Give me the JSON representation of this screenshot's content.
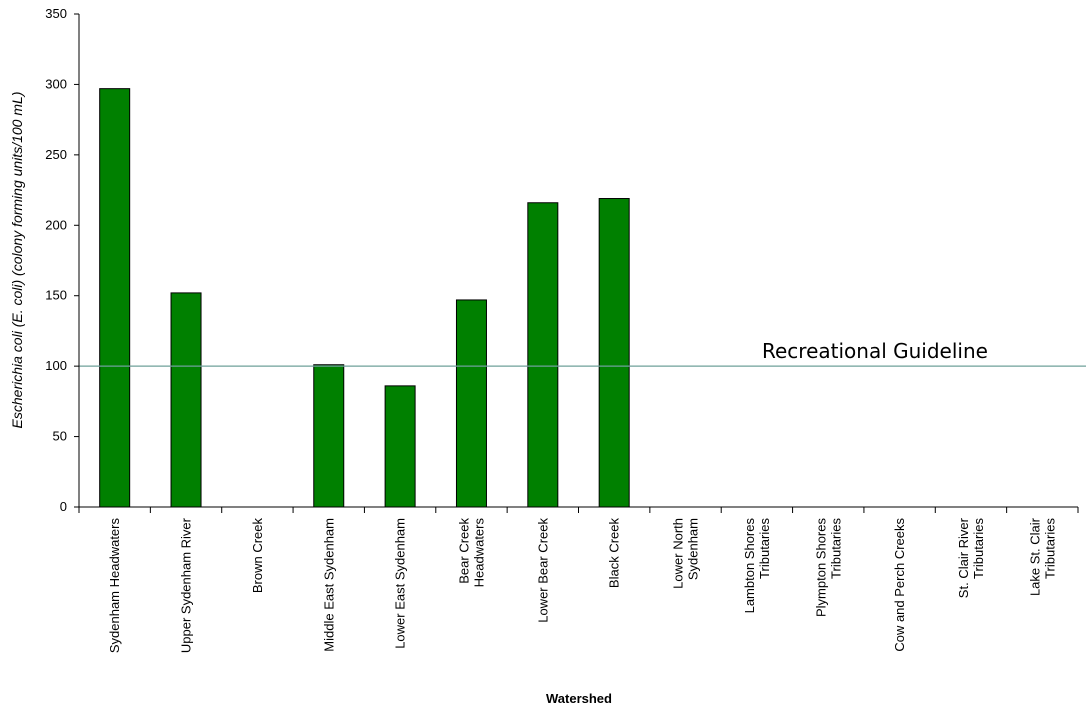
{
  "chart_data": {
    "type": "bar",
    "categories": [
      [
        "Sydenham Headwaters"
      ],
      [
        "Upper Sydenham River"
      ],
      [
        "Brown Creek"
      ],
      [
        "Middle East Sydenham"
      ],
      [
        "Lower East Sydenham"
      ],
      [
        "Bear Creek",
        "Headwaters"
      ],
      [
        "Lower Bear Creek"
      ],
      [
        "Black Creek"
      ],
      [
        "Lower North",
        "Sydenham"
      ],
      [
        "Lambton Shores",
        "Tributaries"
      ],
      [
        "Plympton Shores",
        "Tributaries"
      ],
      [
        "Cow and Perch Creeks"
      ],
      [
        "St. Clair River",
        "Tributaries"
      ],
      [
        "Lake St. Clair",
        "Tributaries"
      ]
    ],
    "values": [
      297,
      152,
      null,
      101,
      86,
      147,
      216,
      null,
      null,
      null,
      null,
      null,
      null,
      null
    ],
    "values_note_unused": null,
    "xlabel": "Watershed",
    "ylabel": "Escherichia coli (E. coli) (colony forming units/100 mL)",
    "ylim": [
      0,
      350
    ],
    "yticks": [
      "0",
      "50",
      "100",
      "150",
      "200",
      "250",
      "300",
      "350"
    ],
    "reference_line": {
      "value": 100,
      "label": "Recreational Guideline"
    },
    "colors": {
      "bar": "#008000",
      "bar_stroke": "#000000",
      "reference": "#6fa19a",
      "axis": "#000000"
    }
  }
}
